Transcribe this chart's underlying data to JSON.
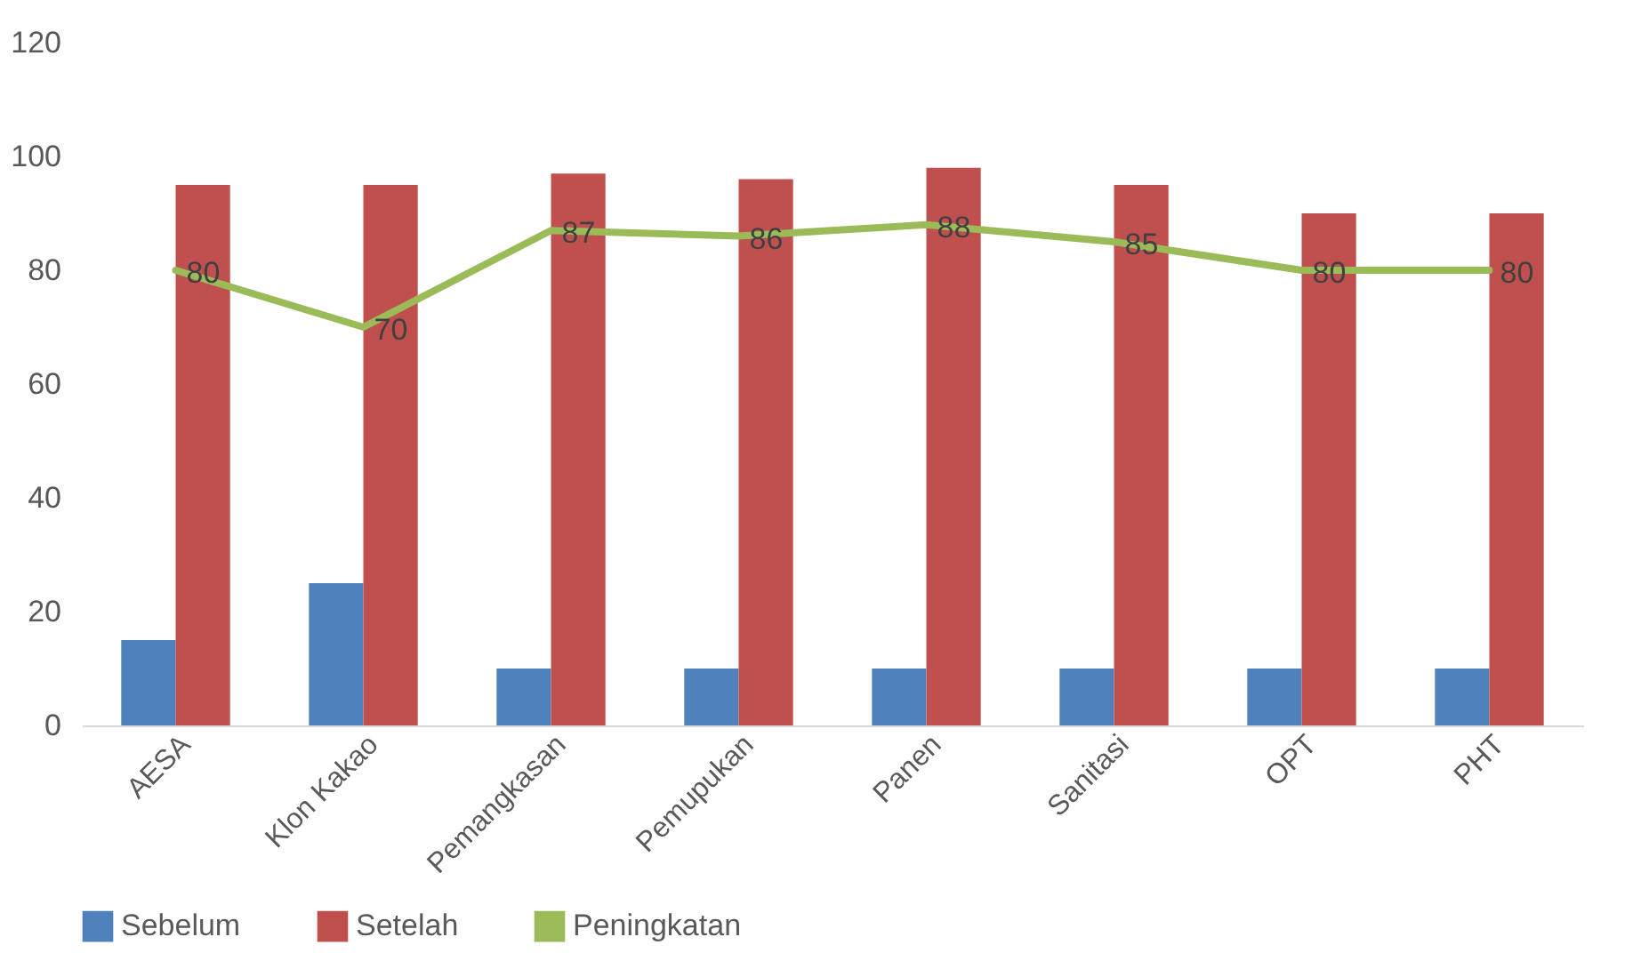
{
  "chart_data": {
    "type": "bar",
    "categories": [
      "AESA",
      "Klon Kakao",
      "Pemangkasan",
      "Pemupukan",
      "Panen",
      "Sanitasi",
      "OPT",
      "PHT"
    ],
    "series": [
      {
        "name": "Sebelum",
        "color": "#4f81bd",
        "values": [
          15,
          25,
          10,
          10,
          10,
          10,
          10,
          10
        ]
      },
      {
        "name": "Setelah",
        "color": "#c0504d",
        "values": [
          95,
          95,
          97,
          96,
          98,
          95,
          90,
          90
        ]
      },
      {
        "name": "Peningkatan",
        "type": "line",
        "color": "#9bbb59",
        "values": [
          80,
          70,
          87,
          86,
          88,
          85,
          80,
          80
        ],
        "value_labels": [
          "80",
          "70",
          "87",
          "86",
          "88",
          "85",
          "80",
          "80"
        ]
      }
    ],
    "ylim": [
      0,
      120
    ],
    "yticks": [
      0,
      20,
      40,
      60,
      80,
      100,
      120
    ],
    "grid": false,
    "legend": "bottom"
  }
}
